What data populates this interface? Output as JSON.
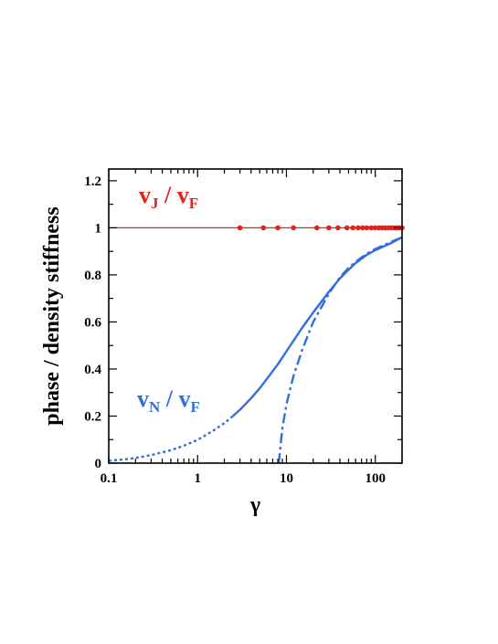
{
  "chart_data": {
    "type": "line",
    "xlabel": "γ",
    "ylabel": "phase / density stiffness",
    "xscale": "log",
    "xlim": [
      0.1,
      200
    ],
    "ylim": [
      0,
      1.25
    ],
    "x_ticks": [
      "0.1",
      "1",
      "10",
      "100"
    ],
    "y_ticks": [
      "0",
      "0.2",
      "0.4",
      "0.6",
      "0.8",
      "1",
      "1.2"
    ],
    "grid": false,
    "annotations": {
      "vj": {
        "v": "v",
        "sub1": "J",
        "slash": " / ",
        "v2": "v",
        "sub2": "F",
        "color": "#e8201a"
      },
      "vn": {
        "v": "v",
        "sub1": "N",
        "slash": " / ",
        "v2": "v",
        "sub2": "F",
        "color": "#2f6fe0"
      }
    },
    "series": [
      {
        "style": "solid",
        "color": "#e8201a",
        "x": [
          0.1,
          200
        ],
        "y": [
          1.0,
          1.0
        ]
      },
      {
        "style": "markers",
        "color": "#e8201a",
        "x": [
          3,
          5.5,
          8,
          12,
          22,
          30,
          38,
          48,
          56,
          64,
          72,
          80,
          90,
          100,
          110,
          120,
          130,
          140,
          150,
          160,
          170,
          180,
          190,
          200
        ],
        "y": [
          1,
          1,
          1,
          1,
          1,
          1,
          1,
          1,
          1,
          1,
          1,
          1,
          1,
          1,
          1,
          1,
          1,
          1,
          1,
          1,
          1,
          1,
          1,
          1
        ]
      },
      {
        "style": "dotted",
        "color": "#2f6fe0",
        "x": [
          0.1,
          0.15,
          0.2,
          0.3,
          0.5,
          0.7,
          1.0,
          1.5,
          2.0,
          2.5
        ],
        "y": [
          0.01,
          0.016,
          0.022,
          0.034,
          0.055,
          0.074,
          0.099,
          0.138,
          0.17,
          0.2
        ]
      },
      {
        "style": "solid",
        "color": "#2f6fe0",
        "x": [
          2.5,
          3,
          4,
          5,
          6,
          8,
          10,
          15,
          20,
          30,
          40,
          50,
          60,
          80,
          100,
          150,
          200
        ],
        "y": [
          0.2,
          0.227,
          0.276,
          0.318,
          0.357,
          0.42,
          0.475,
          0.575,
          0.64,
          0.728,
          0.785,
          0.822,
          0.85,
          0.885,
          0.905,
          0.935,
          0.96
        ]
      },
      {
        "style": "dashdot",
        "color": "#2f6fe0",
        "x": [
          8.2,
          9,
          10,
          12,
          15,
          20,
          30,
          40,
          50,
          60,
          80,
          100,
          150,
          200
        ],
        "y": [
          0.0,
          0.15,
          0.25,
          0.37,
          0.48,
          0.6,
          0.72,
          0.79,
          0.83,
          0.855,
          0.89,
          0.91,
          0.94,
          0.96
        ]
      }
    ]
  }
}
